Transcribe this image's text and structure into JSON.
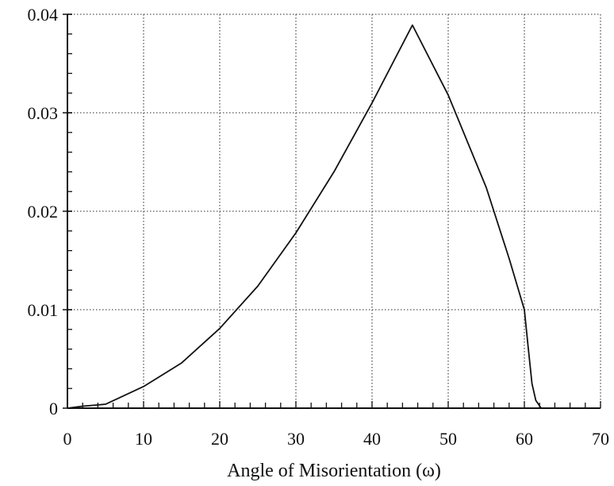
{
  "chart_data": {
    "type": "line",
    "title": "",
    "xlabel": "Angle of Misorientation (ω)",
    "ylabel": "",
    "xlim": [
      0,
      70
    ],
    "ylim": [
      0,
      0.04
    ],
    "x_ticks": [
      "0",
      "10",
      "20",
      "30",
      "40",
      "50",
      "60",
      "70"
    ],
    "y_ticks": [
      "0",
      "0.01",
      "0.02",
      "0.03",
      "0.04"
    ],
    "grid": true,
    "legend": "none",
    "series": [
      {
        "color": "#111111",
        "points": [
          [
            0,
            0.0
          ],
          [
            2,
            0.0002
          ],
          [
            5,
            0.0004
          ],
          [
            10,
            0.0022
          ],
          [
            15,
            0.0046
          ],
          [
            20,
            0.0081
          ],
          [
            25,
            0.0124
          ],
          [
            30,
            0.0178
          ],
          [
            35,
            0.024
          ],
          [
            40,
            0.031
          ],
          [
            45.3,
            0.0389
          ],
          [
            50,
            0.0318
          ],
          [
            55,
            0.0224
          ],
          [
            58,
            0.0152
          ],
          [
            60,
            0.01
          ],
          [
            60.5,
            0.0062
          ],
          [
            61,
            0.0025
          ],
          [
            61.5,
            0.0008
          ],
          [
            62.2,
            0.0
          ],
          [
            70,
            0.0
          ]
        ]
      }
    ]
  }
}
